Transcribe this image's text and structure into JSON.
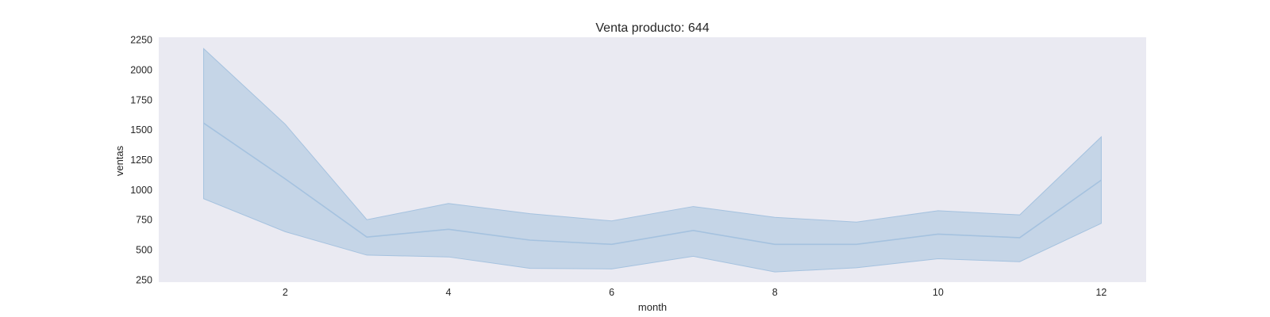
{
  "chart_data": {
    "type": "line",
    "title": "Venta producto: 644",
    "xlabel": "month",
    "ylabel": "ventas",
    "xlim": [
      0.45,
      12.55
    ],
    "ylim": [
      230,
      2270
    ],
    "xticks": [
      2,
      4,
      6,
      8,
      10,
      12
    ],
    "yticks": [
      250,
      500,
      750,
      1000,
      1250,
      1500,
      1750,
      2000,
      2250
    ],
    "grid": false,
    "x": [
      1,
      2,
      3,
      4,
      5,
      6,
      7,
      8,
      9,
      10,
      11,
      12
    ],
    "series": [
      {
        "values": [
          1555,
          1090,
          605,
          670,
          580,
          545,
          660,
          545,
          545,
          630,
          600,
          1080
        ],
        "ci_lower": [
          925,
          650,
          455,
          440,
          345,
          340,
          445,
          315,
          350,
          425,
          400,
          720
        ],
        "ci_upper": [
          2175,
          1545,
          750,
          885,
          800,
          740,
          860,
          770,
          730,
          825,
          790,
          1440
        ]
      }
    ],
    "colors": {
      "plot_background": "#eaeaf2",
      "line": "#a5c2df",
      "band": "#a5c2df"
    }
  }
}
